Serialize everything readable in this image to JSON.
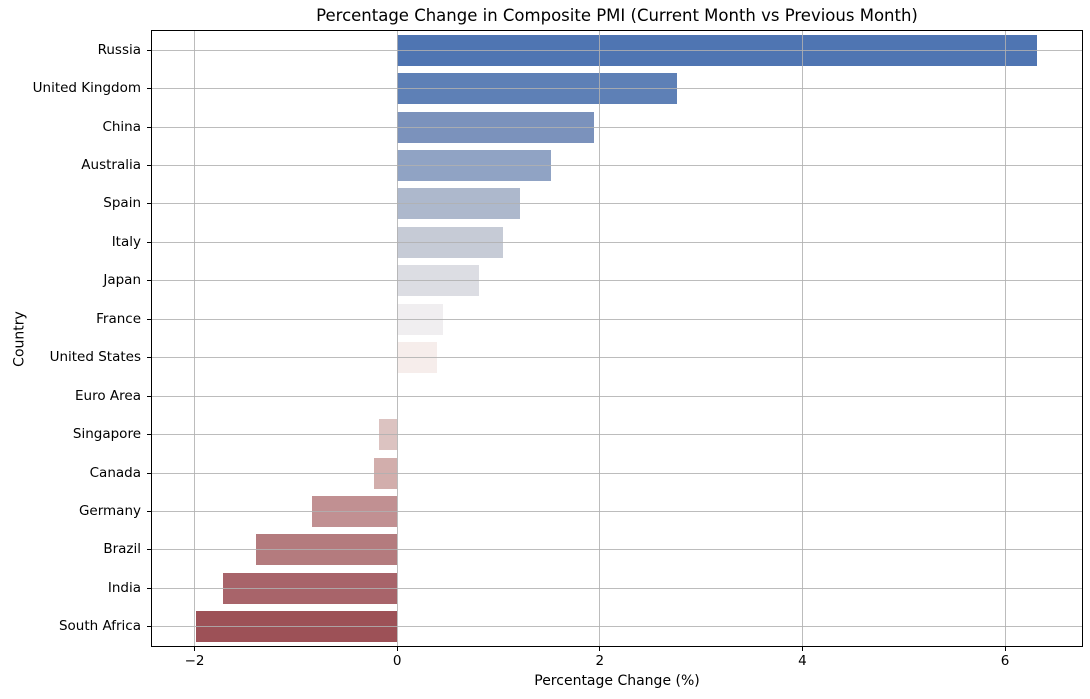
{
  "chart_data": {
    "type": "bar",
    "orientation": "horizontal",
    "title": "Percentage Change in Composite PMI (Current Month vs Previous Month)",
    "xlabel": "Percentage Change (%)",
    "ylabel": "Country",
    "categories": [
      "Russia",
      "United Kingdom",
      "China",
      "Australia",
      "Spain",
      "Italy",
      "Japan",
      "France",
      "United States",
      "Euro Area",
      "Singapore",
      "Canada",
      "Germany",
      "Brazil",
      "India",
      "South Africa"
    ],
    "values": [
      6.32,
      2.76,
      1.94,
      1.52,
      1.21,
      1.04,
      0.81,
      0.45,
      0.39,
      0.0,
      -0.18,
      -0.23,
      -0.84,
      -1.39,
      -1.72,
      -1.99
    ],
    "colors": [
      "#4f75b2",
      "#5e80b6",
      "#7b92bc",
      "#90a3c4",
      "#adb8cc",
      "#c6cbd6",
      "#dcdde3",
      "#f0eef0",
      "#f6edeb",
      "#ecdcd8",
      "#dcc3c1",
      "#d2aeac",
      "#c19092",
      "#b47b7e",
      "#a8646a",
      "#9d5157"
    ],
    "xticks": [
      -2,
      0,
      2,
      4,
      6
    ],
    "xtick_labels": [
      "−2",
      "0",
      "2",
      "4",
      "6"
    ],
    "xlim": [
      -2.42,
      6.76
    ],
    "bar_height_frac": 0.8,
    "grid": true,
    "grid_color": "#b0b0b0",
    "spine_color": "#000000",
    "background": "#ffffff",
    "legend": "none"
  }
}
